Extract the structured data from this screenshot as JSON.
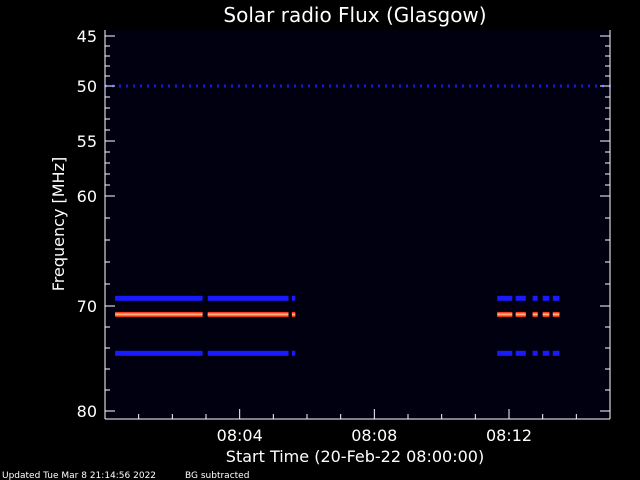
{
  "chart_data": {
    "type": "heatmap",
    "title": "Solar radio Flux (Glasgow)",
    "xlabel": "Start Time (20-Feb-22 08:00:00)",
    "ylabel": "Frequency [MHz]",
    "x_range_minutes": [
      0,
      15
    ],
    "y_ticks": [
      "45",
      "50",
      "55",
      "60",
      "70",
      "80"
    ],
    "x_ticks": [
      {
        "minute": 4,
        "label": "08:04"
      },
      {
        "minute": 8,
        "label": "08:08"
      },
      {
        "minute": 12,
        "label": "08:12"
      }
    ],
    "grid": false,
    "background_color": "#000010",
    "bands": [
      {
        "frequency_mhz": 50,
        "color": "#1b1bd0",
        "intensity": "low",
        "style": "dotted",
        "segments": [
          [
            0,
            15
          ]
        ]
      },
      {
        "frequency_mhz": 69.3,
        "color": "#1a1aff",
        "intensity": "medium",
        "style": "solid",
        "segments": [
          [
            0.3,
            2.9
          ],
          [
            3.05,
            5.45
          ],
          [
            5.55,
            5.65
          ],
          [
            11.65,
            12.1
          ],
          [
            12.2,
            12.5
          ],
          [
            12.7,
            12.85
          ],
          [
            13.0,
            13.2
          ],
          [
            13.3,
            13.5
          ]
        ]
      },
      {
        "frequency_mhz": 70.8,
        "color": "#ff3a1a",
        "intensity": "high",
        "style": "solid",
        "segments": [
          [
            0.3,
            2.9
          ],
          [
            3.05,
            5.45
          ],
          [
            5.55,
            5.65
          ],
          [
            11.65,
            12.1
          ],
          [
            12.2,
            12.5
          ],
          [
            12.7,
            12.85
          ],
          [
            13.0,
            13.2
          ],
          [
            13.3,
            13.5
          ]
        ]
      },
      {
        "frequency_mhz": 74.5,
        "color": "#1a1aff",
        "intensity": "medium",
        "style": "solid",
        "segments": [
          [
            0.3,
            2.9
          ],
          [
            3.05,
            5.45
          ],
          [
            5.55,
            5.65
          ],
          [
            11.65,
            12.1
          ],
          [
            12.2,
            12.5
          ],
          [
            12.7,
            12.85
          ],
          [
            13.0,
            13.2
          ],
          [
            13.3,
            13.5
          ]
        ]
      }
    ]
  },
  "footer": {
    "updated": "Updated Tue Mar  8 21:14:56 2022",
    "note": "BG subtracted"
  },
  "colors": {
    "axis": "#ffffff",
    "plot_background": "#000010"
  }
}
